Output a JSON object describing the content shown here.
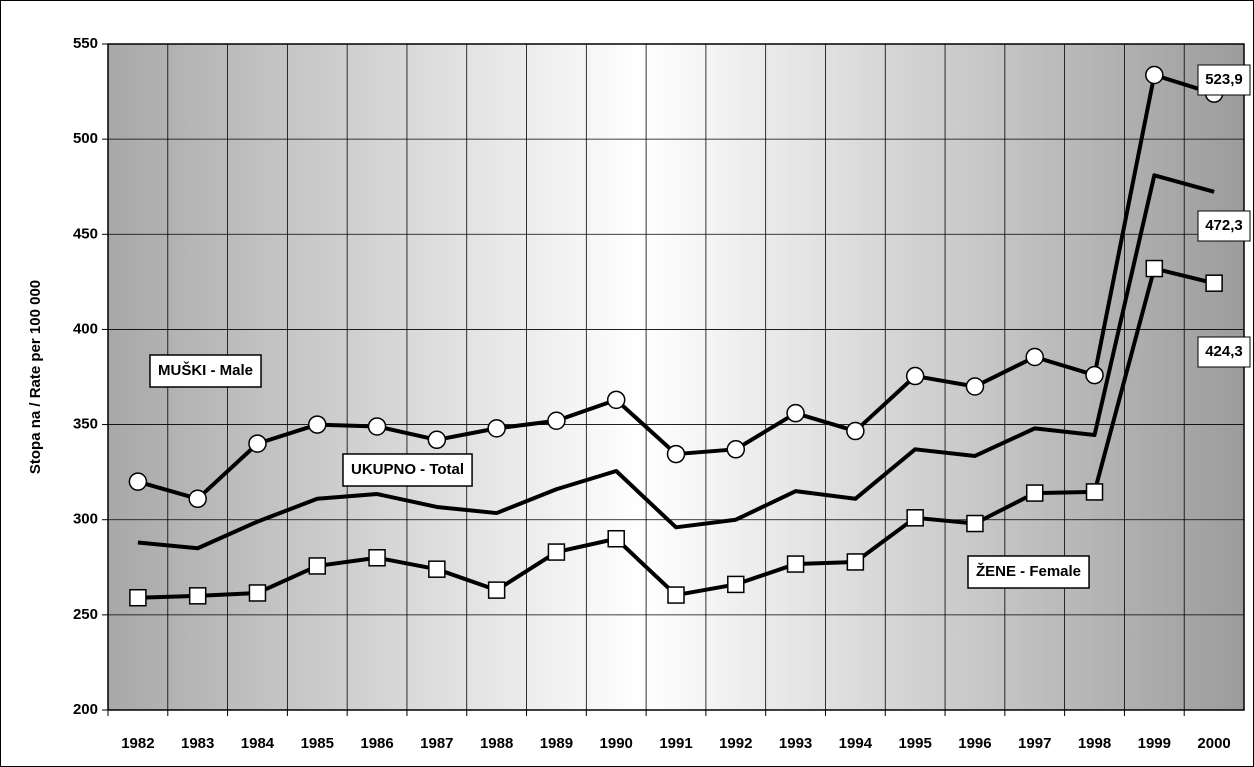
{
  "chart_data": {
    "type": "line",
    "y_label": "Stopa na / Rate per 100 000",
    "categories": [
      "1982",
      "1983",
      "1984",
      "1985",
      "1986",
      "1987",
      "1988",
      "1989",
      "1990",
      "1991",
      "1992",
      "1993",
      "1994",
      "1995",
      "1996",
      "1997",
      "1998",
      "1999",
      "2000"
    ],
    "series": [
      {
        "name": "MUŠKI - Male",
        "color": "#000000",
        "marker": "circle",
        "values": [
          320,
          311,
          340,
          350,
          349,
          342,
          348,
          352,
          363,
          334.5,
          337,
          356,
          346.6,
          375.5,
          370,
          385.5,
          376,
          533.7,
          523.9
        ],
        "value_labels": [
          null,
          null,
          null,
          null,
          null,
          null,
          null,
          null,
          null,
          null,
          null,
          null,
          null,
          null,
          null,
          null,
          null,
          null,
          "523,9"
        ]
      },
      {
        "name": "UKUPNO - Total",
        "color": "#000000",
        "marker": null,
        "values": [
          288,
          285,
          299,
          311,
          313.5,
          306.7,
          303.5,
          316,
          325.6,
          296,
          300,
          315,
          311,
          337,
          333.5,
          348,
          344.5,
          481,
          472.3
        ],
        "value_labels": [
          null,
          null,
          null,
          null,
          null,
          null,
          null,
          null,
          null,
          null,
          null,
          null,
          null,
          null,
          null,
          null,
          null,
          null,
          "472,3"
        ]
      },
      {
        "name": "ŽENE - Female",
        "color": "#000000",
        "marker": "square",
        "values": [
          259,
          260,
          261.5,
          275.7,
          280,
          274,
          263,
          283,
          290,
          260.4,
          266,
          276.7,
          277.8,
          301,
          298,
          314,
          314.6,
          432,
          424.3
        ],
        "value_labels": [
          null,
          null,
          null,
          null,
          null,
          null,
          null,
          null,
          null,
          null,
          null,
          null,
          null,
          null,
          null,
          null,
          null,
          null,
          "424,3"
        ]
      }
    ],
    "ylim": [
      200,
      550
    ],
    "yticks": [
      200,
      250,
      300,
      350,
      400,
      450,
      500,
      550
    ],
    "grid": true
  }
}
